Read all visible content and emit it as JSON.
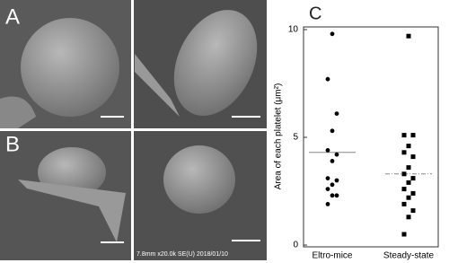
{
  "panels": {
    "a": "A",
    "b": "B",
    "c": "C",
    "caption": "7.8mm x20.0k SE(U) 2018/01/10"
  },
  "chart_data": {
    "type": "dot",
    "ylabel": "Area of each platelet (μm²)",
    "categories": [
      "Eltro-mice",
      "Steady-state"
    ],
    "ylim": [
      0,
      10
    ],
    "yticks": [
      0,
      5,
      10
    ],
    "groups": [
      {
        "marker": "circle",
        "mean": 4.3,
        "values": [
          9.8,
          7.7,
          6.1,
          5.3,
          4.4,
          4.2,
          3.9,
          3.1,
          3.0,
          2.8,
          2.6,
          2.3,
          2.3,
          1.9
        ]
      },
      {
        "marker": "square",
        "mean": 3.3,
        "values": [
          9.7,
          5.1,
          5.1,
          4.6,
          4.3,
          4.1,
          3.6,
          3.3,
          3.1,
          2.9,
          2.6,
          2.4,
          2.2,
          1.9,
          1.6,
          1.3,
          0.5
        ]
      }
    ]
  }
}
